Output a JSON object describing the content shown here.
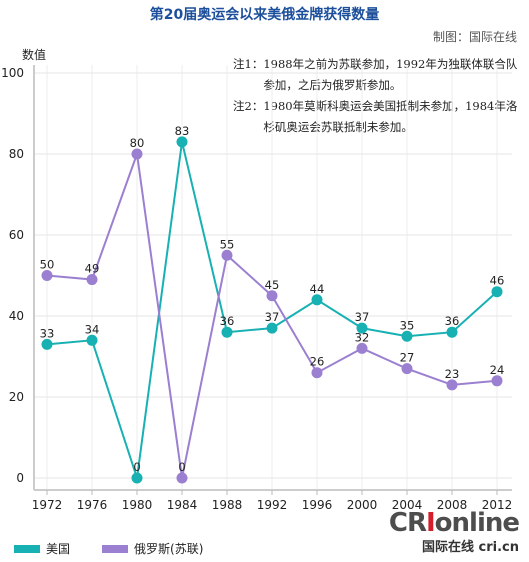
{
  "credit": "制图：国际在线",
  "notes": [
    {
      "key": "注1：",
      "text": "1988年之前为苏联参加，1992年为独联体联合队参加，之后为俄罗斯参加。"
    },
    {
      "key": "注2：",
      "text": "1980年莫斯科奥运会美国抵制未参加，1984年洛杉矶奥运会苏联抵制未参加。"
    }
  ],
  "watermark": {
    "logo_a": "CR",
    "logo_b": "I",
    "logo_c": "online",
    "sub": "国际在线 cri.cn"
  },
  "colors": {
    "usa": "#17b1b3",
    "russia": "#9b7fd0",
    "title": "#1c4f9c"
  },
  "chart_data": {
    "type": "line",
    "title": "第20届奥运会以来美俄金牌获得数量",
    "xlabel": "",
    "ylabel": "数值",
    "x": [
      "1972",
      "1976",
      "1980",
      "1984",
      "1988",
      "1992",
      "1996",
      "2000",
      "2004",
      "2008",
      "2012"
    ],
    "ylim": [
      0,
      100
    ],
    "yticks": [
      "0",
      "20",
      "40",
      "60",
      "80",
      "100"
    ],
    "grid": true,
    "legend": "bottom-left",
    "series": [
      {
        "name": "美国",
        "values": [
          33,
          34,
          0,
          83,
          36,
          37,
          44,
          37,
          35,
          36,
          46
        ],
        "labels": [
          "33",
          "34",
          "0",
          "83",
          "36",
          "37",
          "44",
          "37",
          "35",
          "36",
          "46"
        ]
      },
      {
        "name": "俄罗斯(苏联)",
        "values": [
          50,
          49,
          80,
          0,
          55,
          45,
          26,
          32,
          27,
          23,
          24
        ],
        "labels": [
          "50",
          "49",
          "80",
          "0",
          "55",
          "45",
          "26",
          "32",
          "27",
          "23",
          "24"
        ]
      }
    ]
  }
}
